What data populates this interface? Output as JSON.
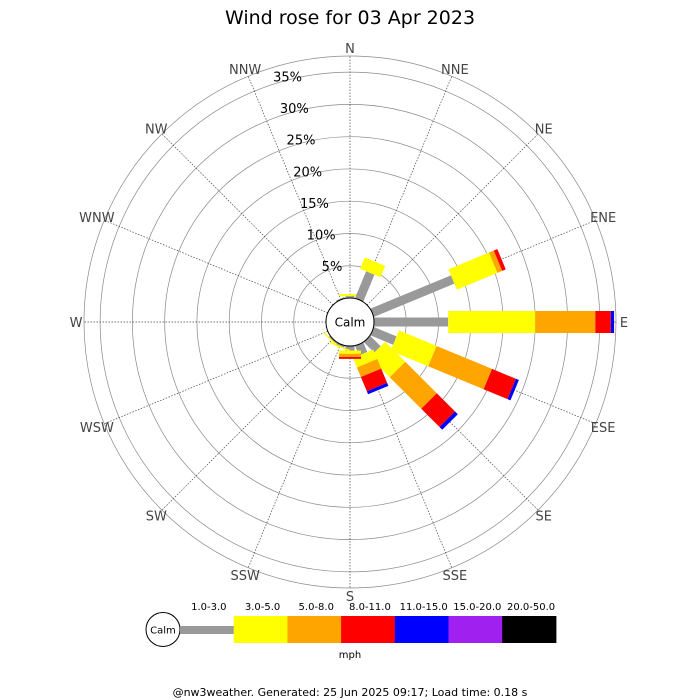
{
  "title": "Wind rose for 03 Apr 2023",
  "footer": "@nw3weather. Generated: 25 Jun 2025 09:17; Load time: 0.18 s",
  "calm_label": "Calm",
  "unit": "mph",
  "chart_data": {
    "type": "wind-rose",
    "title": "Wind rose for 03 Apr 2023",
    "directions": [
      "N",
      "NNE",
      "NE",
      "ENE",
      "E",
      "ESE",
      "SE",
      "SSE",
      "S",
      "SSW",
      "SW",
      "WSW",
      "W",
      "WNW",
      "NW",
      "NNW"
    ],
    "radial_ticks": [
      "5%",
      "10%",
      "15%",
      "20%",
      "25%",
      "30%",
      "35%"
    ],
    "radial_tick_values": [
      5,
      10,
      15,
      20,
      25,
      30,
      35
    ],
    "rmax": 37.5,
    "grid": true,
    "speed_bins": [
      {
        "name": "1.0-3.0",
        "color": "#999999"
      },
      {
        "name": "3.0-5.0",
        "color": "#ffff00"
      },
      {
        "name": "5.0-8.0",
        "color": "#ffa500"
      },
      {
        "name": "8.0-11.0",
        "color": "#ff0000"
      },
      {
        "name": "11.0-15.0",
        "color": "#0000ff"
      },
      {
        "name": "15.0-20.0",
        "color": "#a020f0"
      },
      {
        "name": "20.0-50.0",
        "color": "#000000"
      }
    ],
    "legend_unit": "mph",
    "frequencies": [
      {
        "direction": "N",
        "values": [
          0.3,
          0.3,
          0,
          0,
          0,
          0,
          0
        ]
      },
      {
        "direction": "NNE",
        "values": [
          4.5,
          1.9,
          0,
          0,
          0,
          0,
          0
        ]
      },
      {
        "direction": "NE",
        "values": [
          0,
          0,
          0,
          0,
          0,
          0,
          0
        ]
      },
      {
        "direction": "ENE",
        "values": [
          13.5,
          6.8,
          0.8,
          0.6,
          0,
          0,
          0
        ]
      },
      {
        "direction": "E",
        "values": [
          11.5,
          13.5,
          9.3,
          2.4,
          0.5,
          0,
          0
        ]
      },
      {
        "direction": "ESE",
        "values": [
          3.8,
          6.3,
          9.3,
          4.0,
          0.5,
          0,
          0
        ]
      },
      {
        "direction": "SE",
        "values": [
          2.3,
          4.4,
          6.9,
          4.0,
          0.6,
          0,
          0
        ]
      },
      {
        "direction": "SSE",
        "values": [
          1.6,
          1.6,
          1.6,
          2.4,
          0.5,
          0,
          0
        ]
      },
      {
        "direction": "S",
        "values": [
          0.7,
          0.5,
          0.5,
          0.3,
          0,
          0,
          0
        ]
      },
      {
        "direction": "SSW",
        "values": [
          0.3,
          0.2,
          0,
          0,
          0,
          0,
          0
        ]
      },
      {
        "direction": "SW",
        "values": [
          0.2,
          0.2,
          0,
          0,
          0,
          0,
          0
        ]
      },
      {
        "direction": "WSW",
        "values": [
          0,
          0,
          0,
          0,
          0,
          0,
          0
        ]
      },
      {
        "direction": "W",
        "values": [
          0,
          0,
          0,
          0,
          0,
          0,
          0
        ]
      },
      {
        "direction": "WNW",
        "values": [
          0,
          0,
          0,
          0,
          0,
          0,
          0
        ]
      },
      {
        "direction": "NW",
        "values": [
          0,
          0,
          0,
          0,
          0,
          0,
          0
        ]
      },
      {
        "direction": "NNW",
        "values": [
          0.2,
          0,
          0,
          0,
          0,
          0,
          0
        ]
      }
    ]
  }
}
